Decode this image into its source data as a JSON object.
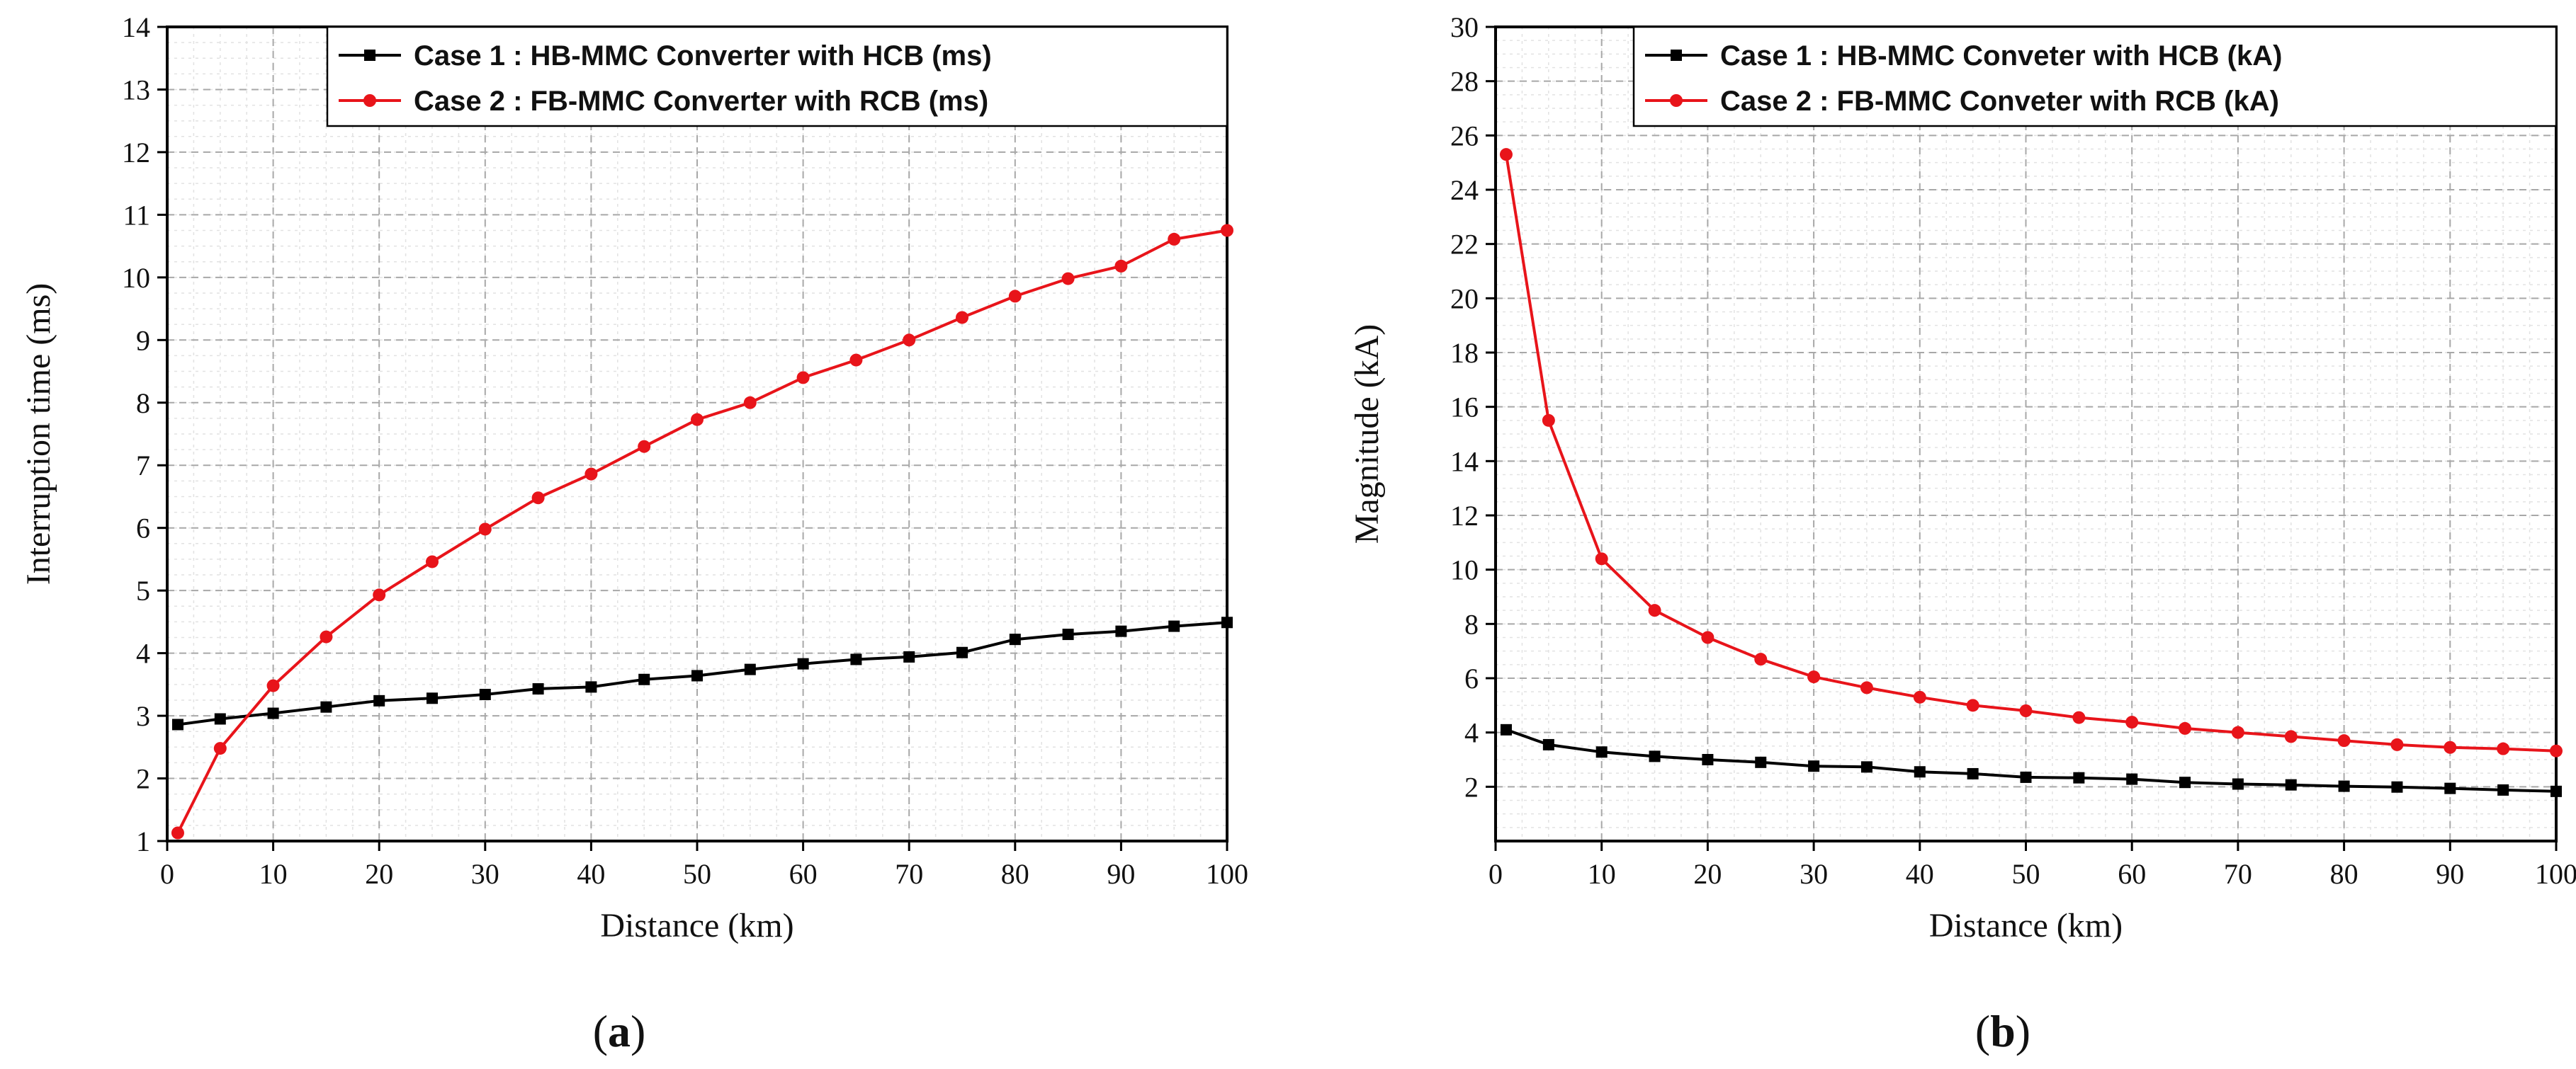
{
  "colors": {
    "case1": "#000000",
    "case2": "#e8141a"
  },
  "chart_data": [
    {
      "type": "line",
      "panel_label": "(a)",
      "panel_letter": "a",
      "xlabel": "Distance (km)",
      "ylabel": "Interruption time (ms)",
      "xlim": [
        0,
        100
      ],
      "ylim": [
        1,
        14
      ],
      "xticks": [
        0,
        10,
        20,
        30,
        40,
        50,
        60,
        70,
        80,
        90,
        100
      ],
      "yticks": [
        1,
        2,
        3,
        4,
        5,
        6,
        7,
        8,
        9,
        10,
        11,
        12,
        13,
        14
      ],
      "grid": true,
      "legend_position": "top-right",
      "x": [
        1,
        5,
        10,
        15,
        20,
        25,
        30,
        35,
        40,
        45,
        50,
        55,
        60,
        65,
        70,
        75,
        80,
        85,
        90,
        95,
        100
      ],
      "series": [
        {
          "name": "Case 1 : HB-MMC Converter with HCB (ms)",
          "color": "#000000",
          "marker": "square",
          "values": [
            2.86,
            2.95,
            3.04,
            3.14,
            3.24,
            3.28,
            3.34,
            3.43,
            3.46,
            3.58,
            3.64,
            3.74,
            3.83,
            3.9,
            3.94,
            4.01,
            4.22,
            4.3,
            4.35,
            4.43,
            4.49
          ]
        },
        {
          "name": "Case 2 : FB-MMC Converter with RCB (ms)",
          "color": "#e8141a",
          "marker": "circle",
          "values": [
            1.13,
            2.48,
            3.48,
            4.26,
            4.93,
            5.46,
            5.98,
            6.48,
            6.86,
            7.3,
            7.73,
            8.0,
            8.4,
            8.68,
            9.0,
            9.36,
            9.7,
            9.98,
            10.18,
            10.61,
            10.75
          ]
        }
      ]
    },
    {
      "type": "line",
      "panel_label": "(b)",
      "panel_letter": "b",
      "xlabel": "Distance (km)",
      "ylabel": "Magnitude (kA)",
      "xlim": [
        0,
        100
      ],
      "ylim": [
        0,
        30
      ],
      "xticks": [
        0,
        10,
        20,
        30,
        40,
        50,
        60,
        70,
        80,
        90,
        100
      ],
      "yticks": [
        2,
        4,
        6,
        8,
        10,
        12,
        14,
        16,
        18,
        20,
        22,
        24,
        26,
        28,
        30
      ],
      "grid": true,
      "legend_position": "top-right",
      "x": [
        1,
        5,
        10,
        15,
        20,
        25,
        30,
        35,
        40,
        45,
        50,
        55,
        60,
        65,
        70,
        75,
        80,
        85,
        90,
        95,
        100
      ],
      "series": [
        {
          "name": "Case 1 : HB-MMC Conveter with HCB  (kA)",
          "color": "#000000",
          "marker": "square",
          "values": [
            4.1,
            3.55,
            3.28,
            3.12,
            3.0,
            2.9,
            2.76,
            2.73,
            2.55,
            2.48,
            2.35,
            2.33,
            2.28,
            2.16,
            2.1,
            2.07,
            2.02,
            1.99,
            1.94,
            1.88,
            1.83
          ]
        },
        {
          "name": "Case 2 : FB-MMC Conveter with RCB  (kA)",
          "color": "#e8141a",
          "marker": "circle",
          "values": [
            25.3,
            15.5,
            10.4,
            8.5,
            7.5,
            6.7,
            6.05,
            5.65,
            5.3,
            5.0,
            4.8,
            4.55,
            4.38,
            4.15,
            4.0,
            3.85,
            3.7,
            3.55,
            3.45,
            3.4,
            3.32
          ]
        }
      ]
    }
  ]
}
